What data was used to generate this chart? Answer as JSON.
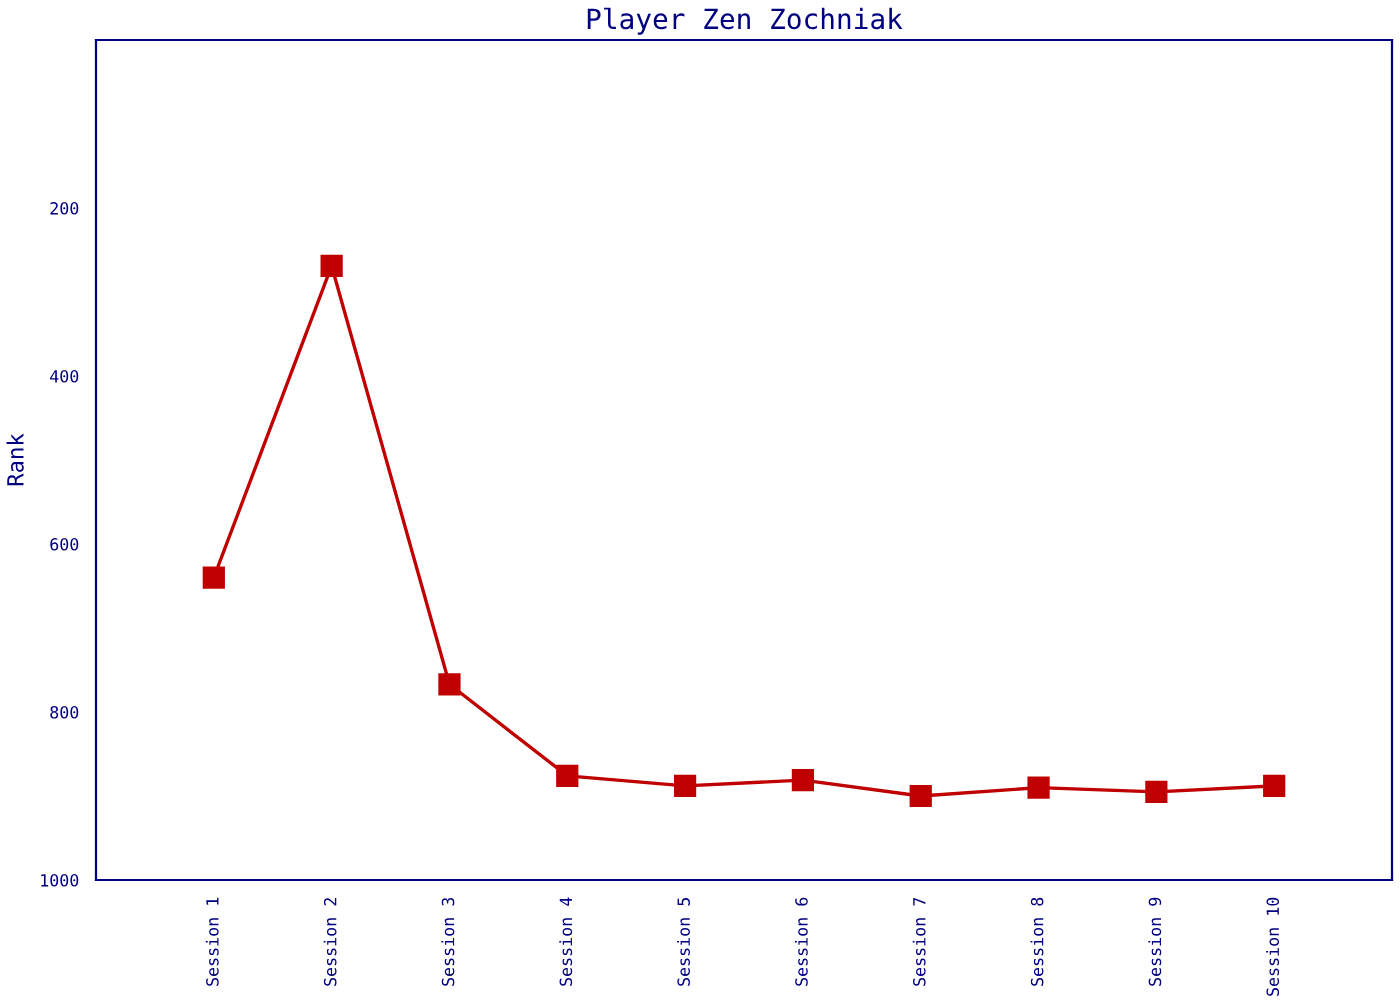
{
  "chart_data": {
    "type": "line",
    "title": "Player Zen Zochniak",
    "ylabel": "Rank",
    "categories": [
      "Session 1",
      "Session 2",
      "Session 3",
      "Session 4",
      "Session 5",
      "Session 6",
      "Session 7",
      "Session 8",
      "Session 9",
      "Session 10"
    ],
    "series": [
      {
        "color": "#c00000",
        "values": [
          640,
          269,
          767,
          876,
          888,
          881,
          900,
          890,
          895,
          888
        ]
      }
    ],
    "ylim": [
      1000,
      0
    ],
    "yticks": [
      200,
      400,
      600,
      800,
      1000
    ],
    "marker": "square",
    "line_style": "solid",
    "grid": false,
    "legend": false
  }
}
